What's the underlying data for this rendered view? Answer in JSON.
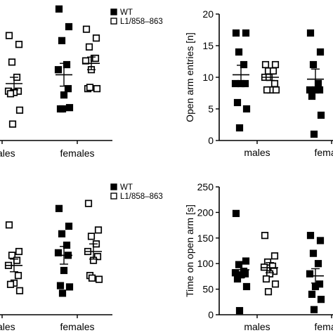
{
  "chart_data": [
    {
      "type": "scatter",
      "panel": "top-left",
      "categories": [
        "males",
        "females"
      ],
      "legend": [
        {
          "label": "WT",
          "marker": "filled-square"
        },
        {
          "label": "L1/858–863",
          "marker": "open-square"
        }
      ],
      "legend_position": "top-right",
      "ylabel": "",
      "ylim": [
        0,
        10
      ],
      "series": [
        {
          "name": "WT",
          "category": "males",
          "points": [],
          "mean": null,
          "sem": null
        },
        {
          "name": "L1/858–863",
          "category": "males",
          "points": [
            8.3,
            7.6,
            6.2,
            5.0,
            3.9,
            3.9,
            3.8,
            3.7,
            2.4,
            1.3
          ],
          "mean": 4.5,
          "sem": 0.5
        },
        {
          "name": "WT",
          "category": "females",
          "points": [
            10.4,
            9.0,
            7.9,
            6.0,
            5.6,
            4.1,
            3.6,
            2.5,
            2.6,
            2.5
          ],
          "mean": 5.2,
          "sem": 0.9
        },
        {
          "name": "L1/858–863",
          "category": "females",
          "points": [
            8.8,
            8.1,
            7.4,
            6.5,
            6.3,
            6.5,
            5.6,
            4.1,
            4.1,
            4.2
          ],
          "mean": 6.1,
          "sem": 0.5
        }
      ]
    },
    {
      "type": "scatter",
      "panel": "top-right",
      "categories": [
        "males",
        "females"
      ],
      "ylabel": "Open arm entries [n]",
      "ylim": [
        0,
        20
      ],
      "yticks": [
        0,
        5,
        10,
        15,
        20
      ],
      "series": [
        {
          "name": "WT",
          "category": "males",
          "points": [
            17,
            17,
            14,
            12,
            9,
            9,
            9,
            6,
            5,
            2
          ],
          "mean": 10.4,
          "sem": 1.5
        },
        {
          "name": "L1/858–863",
          "category": "males",
          "points": [
            12,
            12,
            11,
            11,
            10,
            9,
            8,
            8,
            8,
            10
          ],
          "mean": 10.0,
          "sem": 0.5
        },
        {
          "name": "WT",
          "category": "females",
          "points": [
            17,
            14,
            12,
            9,
            8,
            8,
            8,
            7,
            4,
            1
          ],
          "mean": 9.7,
          "sem": 1.6
        }
      ]
    },
    {
      "type": "scatter",
      "panel": "bottom-left",
      "categories": [
        "males",
        "females"
      ],
      "legend": [
        {
          "label": "WT",
          "marker": "filled-square"
        },
        {
          "label": "L1/858–863",
          "marker": "open-square"
        }
      ],
      "legend_position": "top-right",
      "ylabel": "",
      "ylim": [
        0,
        10
      ],
      "series": [
        {
          "name": "WT",
          "category": "males",
          "points": [],
          "mean": null,
          "sem": null
        },
        {
          "name": "L1/858–863",
          "category": "males",
          "points": [
            7.1,
            5.0,
            4.7,
            4.3,
            3.9,
            3.1,
            2.5,
            2.4,
            1.9
          ],
          "mean": 3.9,
          "sem": 0.5
        },
        {
          "name": "WT",
          "category": "females",
          "points": [
            8.4,
            7.0,
            6.4,
            5.5,
            4.9,
            4.7,
            3.5,
            2.3,
            2.2,
            1.7
          ],
          "mean": 4.7,
          "sem": 0.7
        },
        {
          "name": "L1/858–863",
          "category": "females",
          "points": [
            8.8,
            6.7,
            6.2,
            5.6,
            5.0,
            4.6,
            4.3,
            3.1,
            2.8,
            2.9
          ],
          "mean": 5.0,
          "sem": 0.6
        }
      ]
    },
    {
      "type": "scatter",
      "panel": "bottom-right",
      "categories": [
        "males",
        "females"
      ],
      "ylabel": "Time on open arm [s]",
      "ylim": [
        0,
        250
      ],
      "yticks": [
        0,
        50,
        100,
        150,
        200,
        250
      ],
      "series": [
        {
          "name": "WT",
          "category": "males",
          "points": [
            198,
            105,
            98,
            85,
            82,
            80,
            78,
            70,
            55,
            8
          ],
          "mean": 88,
          "sem": 15
        },
        {
          "name": "L1/858–863",
          "category": "males",
          "points": [
            155,
            115,
            103,
            95,
            93,
            85,
            80,
            70,
            60,
            45
          ],
          "mean": 92,
          "sem": 10
        },
        {
          "name": "WT",
          "category": "females",
          "points": [
            155,
            145,
            120,
            100,
            80,
            60,
            55,
            40,
            30,
            10
          ],
          "mean": 76,
          "sem": 14
        }
      ]
    }
  ]
}
